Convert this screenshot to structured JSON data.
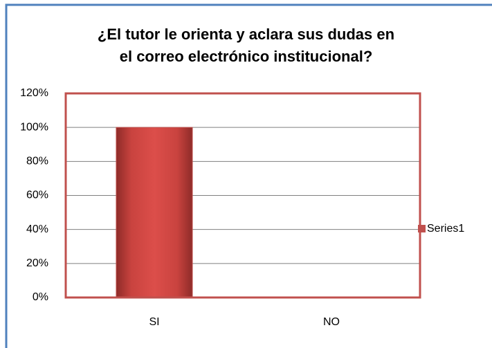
{
  "chart_data": {
    "type": "bar",
    "title": "¿El tutor le orienta y aclara sus dudas en\nel correo electrónico institucional?",
    "categories": [
      "SI",
      "NO"
    ],
    "series": [
      {
        "name": "Series1",
        "color": "#c0504d",
        "values": [
          100,
          0
        ]
      }
    ],
    "ylim": [
      0,
      120
    ],
    "yticks": [
      {
        "value": 0,
        "label": "0%"
      },
      {
        "value": 20,
        "label": "20%"
      },
      {
        "value": 40,
        "label": "40%"
      },
      {
        "value": 60,
        "label": "60%"
      },
      {
        "value": 80,
        "label": "80%"
      },
      {
        "value": 100,
        "label": "100%"
      },
      {
        "value": 120,
        "label": "120%"
      }
    ],
    "grid": true,
    "legend": "right"
  }
}
